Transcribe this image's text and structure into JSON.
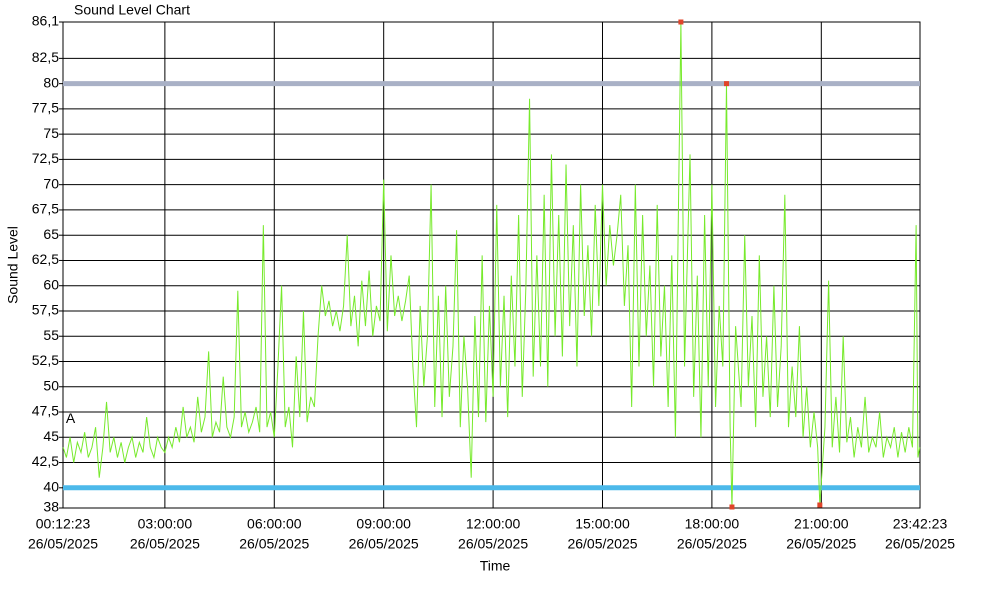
{
  "chart_data": {
    "type": "line",
    "title": "Sound Level Chart",
    "xlabel": "Time",
    "ylabel": "Sound Level",
    "xlim": [
      0.2064,
      23.7064
    ],
    "ylim": [
      38,
      86.1
    ],
    "xticks": [
      {
        "value": 0.2064,
        "label": "00:12:23",
        "date": "26/05/2025"
      },
      {
        "value": 3,
        "label": "03:00:00",
        "date": "26/05/2025"
      },
      {
        "value": 6,
        "label": "06:00:00",
        "date": "26/05/2025"
      },
      {
        "value": 9,
        "label": "09:00:00",
        "date": "26/05/2025"
      },
      {
        "value": 12,
        "label": "12:00:00",
        "date": "26/05/2025"
      },
      {
        "value": 15,
        "label": "15:00:00",
        "date": "26/05/2025"
      },
      {
        "value": 18,
        "label": "18:00:00",
        "date": "26/05/2025"
      },
      {
        "value": 21,
        "label": "21:00:00",
        "date": "26/05/2025"
      },
      {
        "value": 23.7064,
        "label": "23:42:23",
        "date": "26/05/2025"
      }
    ],
    "yticks": [
      38,
      40,
      {
        "value": 42.5,
        "label": "42,5"
      },
      45,
      {
        "value": 47.5,
        "label": "47,5"
      },
      50,
      {
        "value": 52.5,
        "label": "52,5"
      },
      55,
      {
        "value": 57.5,
        "label": "57,5"
      },
      60,
      {
        "value": 62.5,
        "label": "62,5"
      },
      65,
      {
        "value": 67.5,
        "label": "67,5"
      },
      70,
      {
        "value": 72.5,
        "label": "72,5"
      },
      75,
      {
        "value": 77.5,
        "label": "77,5"
      },
      80,
      {
        "value": 82.5,
        "label": "82,5"
      },
      {
        "value": 86.1,
        "label": "86,1"
      }
    ],
    "grid": true,
    "thresholds": [
      {
        "value": 80,
        "color": "#a9b1c6"
      },
      {
        "value": 40,
        "color": "#4cb9ea"
      }
    ],
    "markers": [
      {
        "x": 17.15,
        "y": 86.1
      },
      {
        "x": 18.4,
        "y": 80
      },
      {
        "x": 18.55,
        "y": 38.1
      },
      {
        "x": 20.96,
        "y": 38.3
      }
    ],
    "marker_color": "#e0442a",
    "annotation": {
      "text": "A",
      "x": 0.25,
      "y": 46.8
    },
    "x": [
      0.21,
      0.3,
      0.4,
      0.5,
      0.6,
      0.7,
      0.8,
      0.9,
      1.0,
      1.1,
      1.2,
      1.3,
      1.4,
      1.5,
      1.6,
      1.7,
      1.8,
      1.9,
      2.0,
      2.1,
      2.2,
      2.3,
      2.4,
      2.5,
      2.6,
      2.7,
      2.8,
      2.9,
      3.0,
      3.1,
      3.2,
      3.3,
      3.4,
      3.5,
      3.6,
      3.7,
      3.8,
      3.9,
      4.0,
      4.1,
      4.2,
      4.3,
      4.4,
      4.5,
      4.6,
      4.7,
      4.8,
      4.9,
      5.0,
      5.1,
      5.2,
      5.3,
      5.4,
      5.5,
      5.6,
      5.7,
      5.8,
      5.9,
      6.0,
      6.1,
      6.2,
      6.3,
      6.4,
      6.5,
      6.6,
      6.7,
      6.8,
      6.9,
      7.0,
      7.1,
      7.2,
      7.3,
      7.4,
      7.5,
      7.6,
      7.7,
      7.8,
      7.9,
      8.0,
      8.1,
      8.2,
      8.3,
      8.4,
      8.5,
      8.6,
      8.7,
      8.8,
      8.9,
      9.0,
      9.1,
      9.2,
      9.3,
      9.4,
      9.5,
      9.6,
      9.7,
      9.8,
      9.9,
      10.0,
      10.1,
      10.2,
      10.3,
      10.4,
      10.5,
      10.6,
      10.7,
      10.8,
      10.9,
      11.0,
      11.1,
      11.2,
      11.3,
      11.4,
      11.5,
      11.6,
      11.7,
      11.8,
      11.9,
      12.0,
      12.1,
      12.2,
      12.3,
      12.4,
      12.5,
      12.6,
      12.7,
      12.8,
      12.9,
      13.0,
      13.1,
      13.2,
      13.3,
      13.4,
      13.5,
      13.6,
      13.7,
      13.8,
      13.9,
      14.0,
      14.1,
      14.2,
      14.3,
      14.4,
      14.5,
      14.6,
      14.7,
      14.8,
      14.9,
      15.0,
      15.1,
      15.2,
      15.3,
      15.4,
      15.5,
      15.6,
      15.7,
      15.8,
      15.9,
      16.0,
      16.1,
      16.2,
      16.3,
      16.4,
      16.5,
      16.6,
      16.7,
      16.8,
      16.9,
      17.0,
      17.15,
      17.25,
      17.4,
      17.5,
      17.6,
      17.7,
      17.8,
      17.9,
      18.0,
      18.1,
      18.2,
      18.3,
      18.4,
      18.5,
      18.55,
      18.65,
      18.8,
      18.9,
      19.0,
      19.1,
      19.2,
      19.3,
      19.4,
      19.5,
      19.6,
      19.7,
      19.8,
      19.9,
      20.0,
      20.1,
      20.2,
      20.3,
      20.4,
      20.5,
      20.6,
      20.7,
      20.8,
      20.9,
      20.96,
      21.1,
      21.2,
      21.3,
      21.4,
      21.5,
      21.6,
      21.7,
      21.8,
      21.9,
      22.0,
      22.1,
      22.2,
      22.3,
      22.4,
      22.5,
      22.6,
      22.7,
      22.8,
      22.9,
      23.0,
      23.1,
      23.2,
      23.3,
      23.4,
      23.5,
      23.6,
      23.65,
      23.7
    ],
    "series": [
      {
        "name": "Sound Level",
        "color": "#77ea2c",
        "values": [
          44,
          43,
          45,
          42.5,
          44.5,
          43.5,
          45.5,
          43,
          44,
          46,
          41,
          44,
          48.5,
          43.5,
          45,
          43,
          44.5,
          42.5,
          44,
          45,
          43,
          44.5,
          43.5,
          47,
          44,
          43,
          45,
          44,
          43.5,
          45,
          44,
          46,
          44.5,
          48,
          45,
          46,
          44.5,
          49,
          45.5,
          47,
          53.5,
          45,
          46.5,
          45.5,
          51,
          46,
          45,
          47,
          59.5,
          46,
          47.5,
          45.5,
          46.5,
          48,
          45.5,
          66,
          46,
          47.5,
          45,
          52,
          60,
          46,
          48,
          44,
          53,
          47,
          57.5,
          46.5,
          49,
          48,
          55,
          60,
          57,
          58.5,
          56,
          57.5,
          55.5,
          58,
          65,
          56,
          59,
          54,
          60.5,
          56,
          61.5,
          55,
          58,
          56.5,
          70.5,
          55.5,
          63,
          57,
          59,
          56.5,
          58.5,
          61,
          52,
          46,
          58,
          50,
          55,
          70,
          48,
          59,
          47,
          60,
          49,
          54,
          65.5,
          46,
          55,
          50,
          41,
          57,
          47,
          63,
          46.5,
          58,
          49,
          68,
          50,
          59,
          47,
          61,
          52,
          67,
          49,
          60,
          78.5,
          51,
          63,
          52,
          69,
          50,
          73,
          55,
          67,
          53,
          72,
          56,
          66,
          52,
          70,
          57,
          64,
          55,
          68,
          58,
          70,
          60,
          66,
          62,
          65,
          69,
          58,
          64,
          48,
          70,
          52,
          67,
          55,
          62,
          50,
          68,
          53,
          60,
          48,
          63,
          45,
          86.1,
          52,
          73,
          49,
          61,
          45,
          67,
          50,
          70,
          48,
          58,
          52,
          80,
          46,
          38.1,
          56,
          48,
          65,
          50,
          57,
          46,
          63,
          49,
          55,
          47,
          60,
          48,
          54,
          69,
          46,
          52,
          47,
          56,
          45,
          50,
          44,
          47.5,
          44,
          38.3,
          46,
          60.5,
          44,
          49,
          43.5,
          55,
          44.5,
          47,
          43,
          46,
          44,
          49,
          43.5,
          45,
          44,
          47.5,
          43,
          45,
          44,
          46,
          43,
          45.5,
          43.5,
          46,
          44,
          66,
          43,
          44
        ]
      }
    ]
  }
}
